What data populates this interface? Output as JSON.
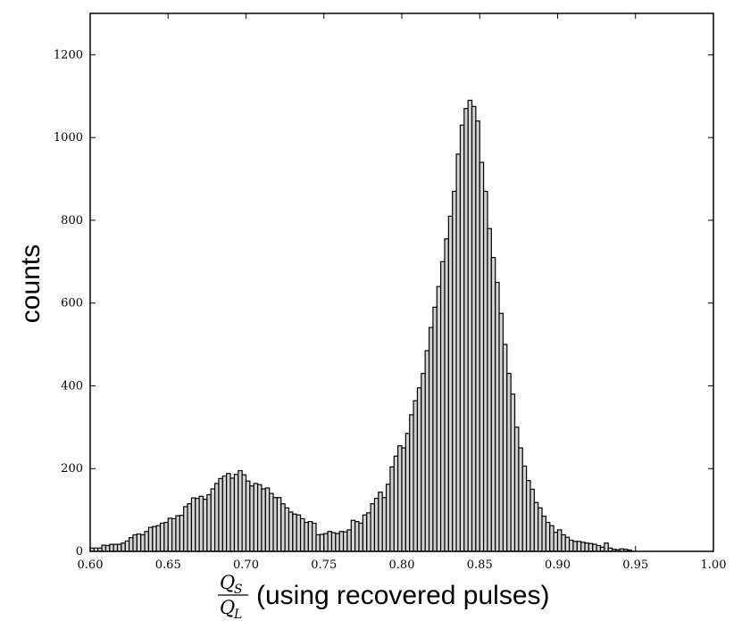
{
  "chart_data": {
    "type": "bar",
    "ylabel": "counts",
    "xlabel": {
      "numerator": "Q",
      "numerator_sub": "S",
      "denominator": "Q",
      "denominator_sub": "L",
      "suffix": "(using recovered pulses)"
    },
    "xlim": [
      0.6,
      1.0
    ],
    "ylim": [
      0,
      1300
    ],
    "x_ticks": [
      "0.60",
      "0.65",
      "0.70",
      "0.75",
      "0.80",
      "0.85",
      "0.90",
      "0.95",
      "1.00"
    ],
    "y_ticks": [
      "0",
      "200",
      "400",
      "600",
      "800",
      "1000",
      "1200"
    ],
    "grid": false,
    "bar_color": "#d3d3d3",
    "edge_color": "#000000",
    "bin_width": 0.0025,
    "bin_start": 0.6,
    "values": [
      8,
      8,
      8,
      15,
      14,
      17,
      17,
      17,
      20,
      25,
      33,
      40,
      42,
      40,
      48,
      58,
      60,
      62,
      68,
      70,
      80,
      79,
      86,
      87,
      108,
      115,
      129,
      128,
      133,
      126,
      137,
      151,
      164,
      176,
      182,
      188,
      177,
      186,
      195,
      185,
      170,
      158,
      164,
      161,
      151,
      153,
      140,
      130,
      130,
      115,
      105,
      95,
      90,
      88,
      79,
      70,
      72,
      68,
      40,
      41,
      43,
      48,
      45,
      43,
      48,
      47,
      52,
      75,
      72,
      68,
      88,
      93,
      115,
      128,
      143,
      130,
      162,
      204,
      230,
      255,
      250,
      285,
      330,
      364,
      395,
      430,
      485,
      541,
      590,
      640,
      700,
      755,
      810,
      870,
      960,
      1030,
      1070,
      1090,
      1075,
      1040,
      940,
      870,
      780,
      710,
      650,
      575,
      500,
      430,
      380,
      300,
      250,
      206,
      171,
      150,
      118,
      105,
      85,
      70,
      62,
      46,
      52,
      40,
      34,
      27,
      24,
      24,
      22,
      20,
      19,
      17,
      14,
      10,
      20,
      8,
      5,
      4,
      6,
      5,
      3
    ],
    "colors": {
      "bar_fill": "#d3d3d3",
      "bar_edge": "#000000",
      "axis": "#000000"
    }
  }
}
